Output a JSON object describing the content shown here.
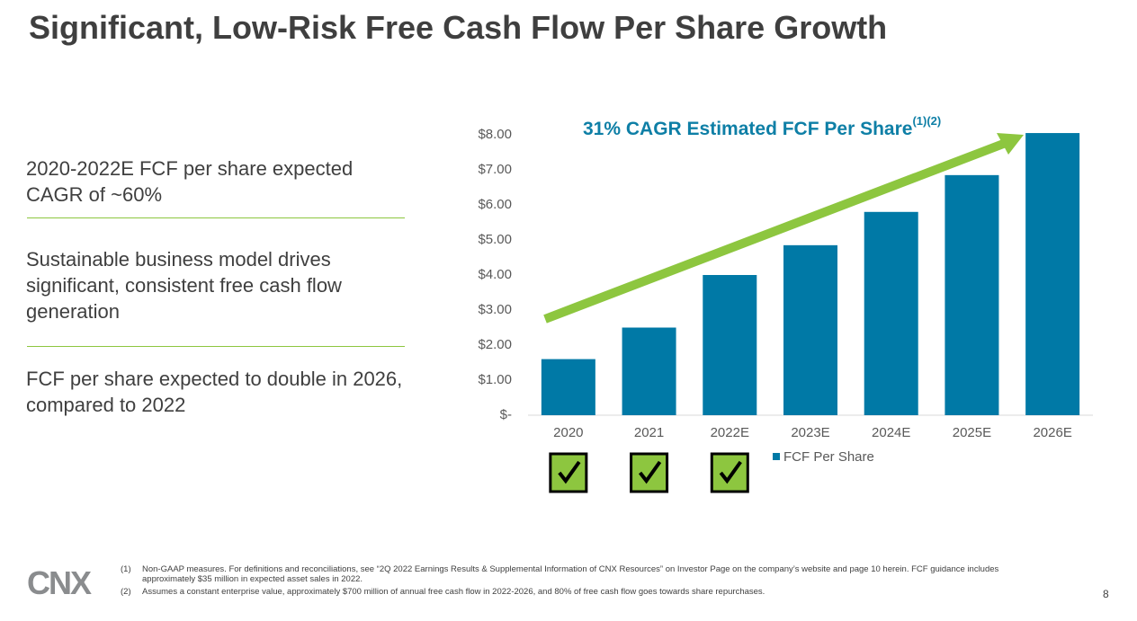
{
  "header": {
    "title": "Significant, Low-Risk Free Cash Flow Per Share Growth"
  },
  "bullets": [
    "2020-2022E FCF per share expected CAGR of ~60%",
    "Sustainable business model drives significant, consistent free cash flow generation",
    "FCF per share expected to double in 2026, compared to 2022"
  ],
  "chart_data": {
    "type": "bar",
    "annotation": "31% CAGR Estimated FCF Per Share",
    "annotation_sup": "(1)(2)",
    "categories": [
      "2020",
      "2021",
      "2022E",
      "2023E",
      "2024E",
      "2025E",
      "2026E"
    ],
    "series": [
      {
        "name": "FCF Per Share",
        "color": "#0079a6",
        "values": [
          1.6,
          2.5,
          4.0,
          4.85,
          5.8,
          6.85,
          8.05
        ]
      }
    ],
    "ylim": [
      0,
      8
    ],
    "yticks": [
      {
        "value": 0,
        "label": "$-"
      },
      {
        "value": 1,
        "label": "$1.00"
      },
      {
        "value": 2,
        "label": "$2.00"
      },
      {
        "value": 3,
        "label": "$3.00"
      },
      {
        "value": 4,
        "label": "$4.00"
      },
      {
        "value": 5,
        "label": "$5.00"
      },
      {
        "value": 6,
        "label": "$6.00"
      },
      {
        "value": 7,
        "label": "$7.00"
      },
      {
        "value": 8,
        "label": "$8.00"
      }
    ],
    "legend": "bottom"
  },
  "footnotes": [
    {
      "mark": "(1)",
      "text": "Non-GAAP measures. For definitions and reconciliations, see “2Q 2022 Earnings Results & Supplemental Information of CNX Resources” on Investor Page on the company’s website and page 10 herein. FCF guidance includes approximately $35 million in expected asset sales in 2022."
    },
    {
      "mark": "(2)",
      "text": "Assumes a constant enterprise value, approximately $700 million of annual free cash flow in 2022-2026, and 80% of free cash flow goes towards share repurchases."
    }
  ],
  "footer": {
    "logo": "CNX",
    "page": "8"
  }
}
